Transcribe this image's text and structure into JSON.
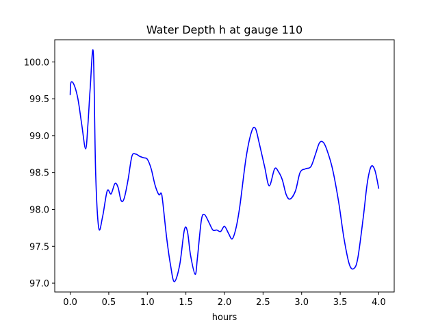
{
  "chart_data": {
    "type": "line",
    "title": "Water Depth h at gauge 110",
    "xlabel": "hours",
    "ylabel": "",
    "xlim": [
      -0.2,
      4.2
    ],
    "ylim": [
      96.88,
      100.3
    ],
    "xticks": [
      0.0,
      0.5,
      1.0,
      1.5,
      2.0,
      2.5,
      3.0,
      3.5,
      4.0
    ],
    "xtick_labels": [
      "0.0",
      "0.5",
      "1.0",
      "1.5",
      "2.0",
      "2.5",
      "3.0",
      "3.5",
      "4.0"
    ],
    "yticks": [
      97.0,
      97.5,
      98.0,
      98.5,
      99.0,
      99.5,
      100.0
    ],
    "ytick_labels": [
      "97.0",
      "97.5",
      "98.0",
      "98.5",
      "99.0",
      "99.5",
      "100.0"
    ],
    "grid": false,
    "line_color": "#0000ff",
    "series": [
      {
        "x": [
          0.0,
          0.01,
          0.05,
          0.1,
          0.15,
          0.2,
          0.23,
          0.26,
          0.3,
          0.33,
          0.37,
          0.42,
          0.48,
          0.53,
          0.58,
          0.62,
          0.66,
          0.7,
          0.75,
          0.8,
          0.85,
          0.9,
          0.95,
          1.0,
          1.05,
          1.1,
          1.15,
          1.18,
          1.2,
          1.25,
          1.3,
          1.35,
          1.42,
          1.48,
          1.52,
          1.56,
          1.62,
          1.65,
          1.7,
          1.74,
          1.8,
          1.85,
          1.9,
          1.95,
          2.0,
          2.05,
          2.1,
          2.15,
          2.2,
          2.28,
          2.35,
          2.4,
          2.45,
          2.52,
          2.58,
          2.65,
          2.7,
          2.75,
          2.8,
          2.85,
          2.92,
          2.98,
          3.05,
          3.12,
          3.18,
          3.23,
          3.28,
          3.33,
          3.4,
          3.48,
          3.55,
          3.62,
          3.68,
          3.73,
          3.8,
          3.85,
          3.9,
          3.95,
          4.0
        ],
        "y": [
          99.55,
          99.72,
          99.69,
          99.5,
          99.15,
          98.82,
          99.15,
          99.65,
          100.12,
          98.5,
          97.75,
          97.9,
          98.25,
          98.21,
          98.35,
          98.3,
          98.12,
          98.15,
          98.4,
          98.72,
          98.75,
          98.72,
          98.7,
          98.68,
          98.55,
          98.33,
          98.2,
          98.22,
          98.1,
          97.62,
          97.25,
          97.02,
          97.25,
          97.72,
          97.7,
          97.38,
          97.12,
          97.35,
          97.85,
          97.93,
          97.82,
          97.72,
          97.72,
          97.7,
          97.77,
          97.68,
          97.6,
          97.75,
          98.05,
          98.7,
          99.05,
          99.1,
          98.9,
          98.58,
          98.32,
          98.55,
          98.51,
          98.4,
          98.2,
          98.14,
          98.25,
          98.5,
          98.55,
          98.58,
          98.75,
          98.9,
          98.91,
          98.8,
          98.55,
          98.1,
          97.6,
          97.25,
          97.2,
          97.35,
          97.9,
          98.35,
          98.58,
          98.53,
          98.28
        ]
      }
    ]
  }
}
